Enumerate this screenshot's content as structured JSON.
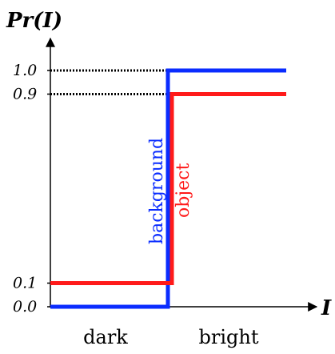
{
  "chart_data": {
    "type": "line",
    "ylabel": "Pr(I)",
    "xlabel": "I",
    "categories": [
      "dark",
      "bright"
    ],
    "y_ticks": [
      "1.0",
      "0.9",
      "0.1",
      "0.0"
    ],
    "tick_values": [
      1.0,
      0.9,
      0.1,
      0.0
    ],
    "ylim": [
      0,
      1
    ],
    "grid": false,
    "step_at": 0.5,
    "series": [
      {
        "name": "background",
        "color": "#0a2cff",
        "values": [
          0.0,
          1.0
        ]
      },
      {
        "name": "object",
        "color": "#ff1a1a",
        "values": [
          0.1,
          0.9
        ]
      }
    ]
  }
}
